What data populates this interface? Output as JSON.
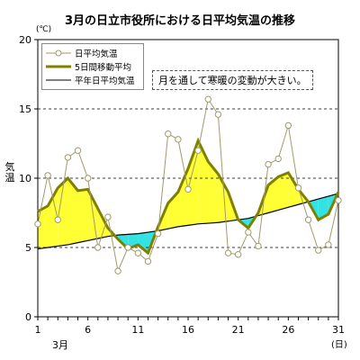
{
  "chart_data": {
    "type": "line",
    "title": "3月の日立市役所における日平均気温の推移",
    "ylabel": "気温",
    "yunit": "(℃)",
    "xunit": "(日)",
    "month_label": "3月",
    "annotation": "月を通して寒暖の変動が大きい。",
    "ylim": [
      0,
      20
    ],
    "y_ticks": [
      0,
      5,
      10,
      15,
      20
    ],
    "x_ticks": [
      1,
      6,
      11,
      16,
      21,
      26,
      31
    ],
    "x": [
      1,
      2,
      3,
      4,
      5,
      6,
      7,
      8,
      9,
      10,
      11,
      12,
      13,
      14,
      15,
      16,
      17,
      18,
      19,
      20,
      21,
      22,
      23,
      24,
      25,
      26,
      27,
      28,
      29,
      30,
      31
    ],
    "grid": "dashed horizontal at 5,10,15",
    "legend_placement": "top-left",
    "series": [
      {
        "name": "日平均気温",
        "color": "#a09a6a",
        "values": [
          6.7,
          10.2,
          7.0,
          11.5,
          12.0,
          10.0,
          5.0,
          7.2,
          3.3,
          5.0,
          4.6,
          4.0,
          6.0,
          13.2,
          12.8,
          9.2,
          12.0,
          15.7,
          14.6,
          4.6,
          4.5,
          6.1,
          5.1,
          11.0,
          11.4,
          13.8,
          9.3,
          7.0,
          4.8,
          5.2,
          8.4
        ]
      },
      {
        "name": "5日間移動平均",
        "color": "#808000",
        "values": [
          7.6,
          8.0,
          9.3,
          10.0,
          9.1,
          9.2,
          7.8,
          6.4,
          5.6,
          4.9,
          5.2,
          4.6,
          6.5,
          8.2,
          9.0,
          10.7,
          12.7,
          11.2,
          10.3,
          9.0,
          7.0,
          6.4,
          7.5,
          9.5,
          10.1,
          10.4,
          9.2,
          8.3,
          7.0,
          7.4,
          9.0
        ]
      },
      {
        "name": "平年日平均気温",
        "color": "#000000",
        "values": [
          4.9,
          5.0,
          5.1,
          5.2,
          5.35,
          5.5,
          5.65,
          5.8,
          5.9,
          5.95,
          6.0,
          6.1,
          6.2,
          6.35,
          6.5,
          6.6,
          6.7,
          6.75,
          6.8,
          6.9,
          7.0,
          7.1,
          7.3,
          7.5,
          7.7,
          7.9,
          8.1,
          8.3,
          8.5,
          8.7,
          8.9
        ]
      }
    ],
    "fill_above_color": "#ffff33",
    "fill_below_color": "#33e3e3"
  }
}
